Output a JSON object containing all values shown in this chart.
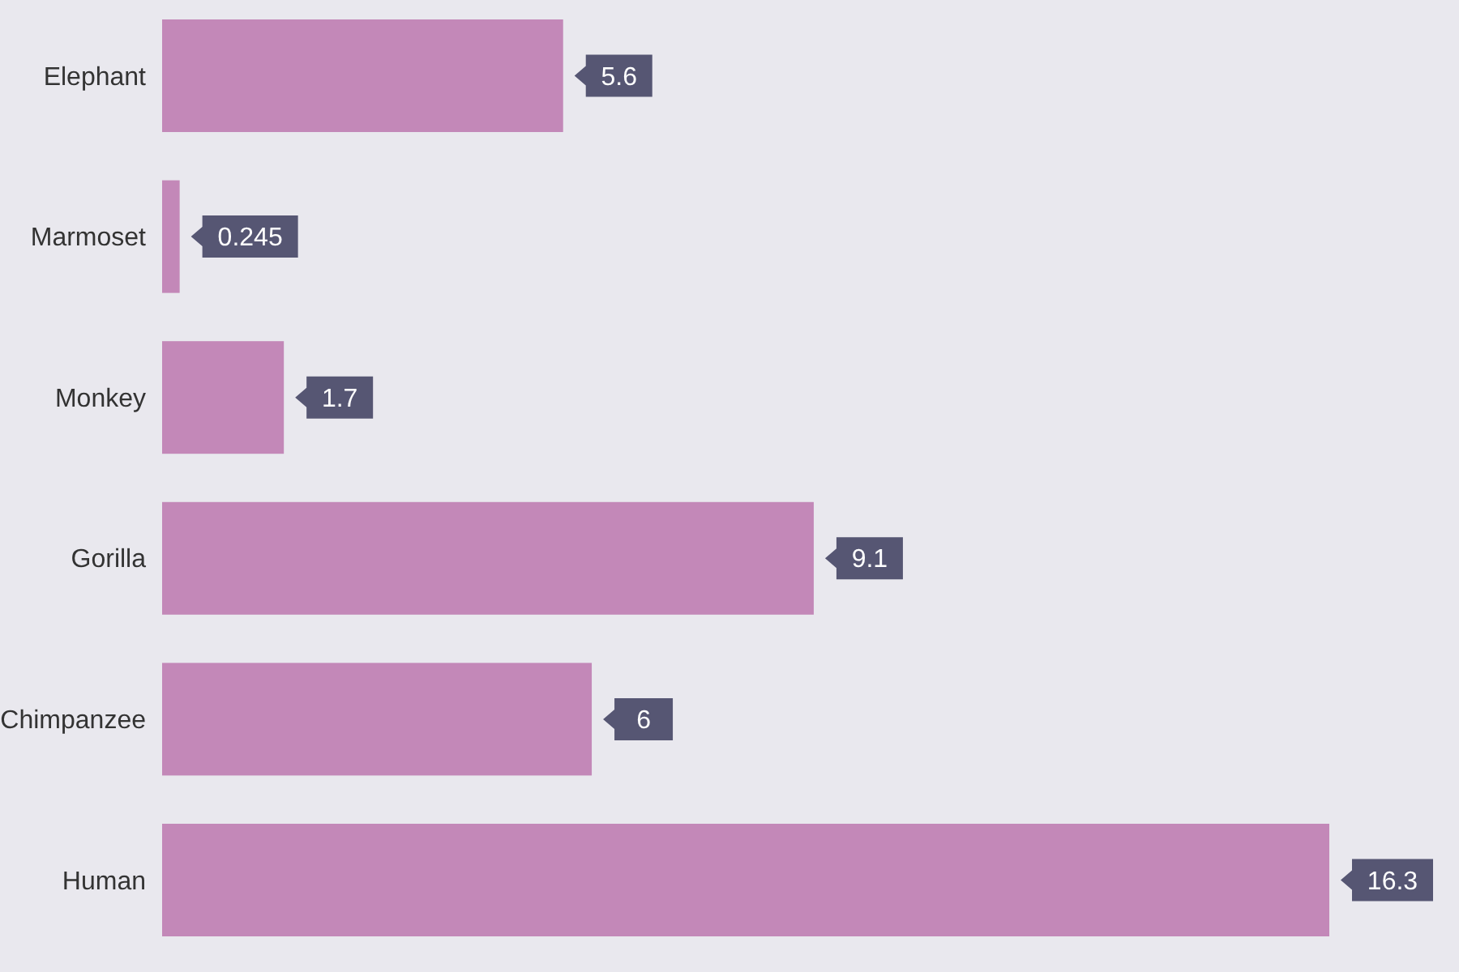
{
  "chart_data": {
    "type": "bar",
    "orientation": "horizontal",
    "categories": [
      "Elephant",
      "Marmoset",
      "Monkey",
      "Gorilla",
      "Chimpanzee",
      "Human"
    ],
    "values": [
      5.6,
      0.245,
      1.7,
      9.1,
      6,
      16.3
    ],
    "color": "#c388b8",
    "data_labels": true
  }
}
